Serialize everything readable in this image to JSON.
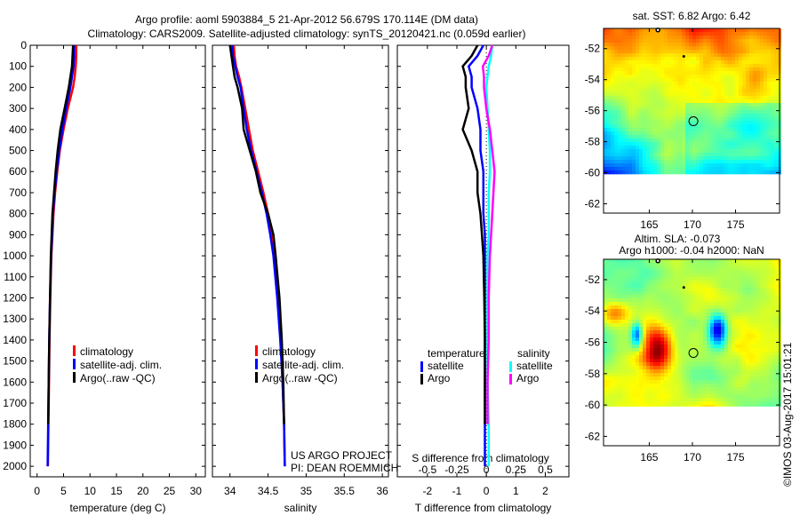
{
  "title": {
    "line1": "Argo profile: aoml 5903884_5 21-Apr-2012 56.679S 170.114E (DM data)",
    "line2": "Climatology: CARS2009. Satellite-adjusted climatology: synTS_20120421.nc (0.059d earlier)"
  },
  "project": {
    "line1": "US ARGO PROJECT",
    "line2": "PI: DEAN ROEMMICH"
  },
  "timestamp": "©IMOS 03-Aug-2017 15:01:21",
  "chart_data": [
    {
      "type": "line",
      "xlabel": "temperature (deg C)",
      "xlim": [
        -1.3,
        31.8
      ],
      "xticks": [
        "0",
        "5",
        "10",
        "15",
        "20",
        "25",
        "30"
      ],
      "ylim": [
        0,
        2050
      ],
      "yticks": [
        "0",
        "100",
        "200",
        "300",
        "400",
        "500",
        "600",
        "700",
        "800",
        "900",
        "1000",
        "1100",
        "1200",
        "1300",
        "1400",
        "1500",
        "1600",
        "1700",
        "1800",
        "1900",
        "2000"
      ],
      "legend": [
        "climatology",
        "satellite-adj. clim.",
        "Argo(..raw -QC)"
      ],
      "depth": [
        0,
        50,
        100,
        150,
        200,
        300,
        400,
        500,
        600,
        700,
        800,
        900,
        1000,
        1200,
        1400,
        1600,
        1800,
        2000
      ],
      "series": [
        {
          "name": "climatology",
          "color": "#ff0000",
          "values": [
            7.4,
            7.4,
            7.3,
            7.1,
            6.8,
            5.8,
            5.0,
            4.3,
            3.8,
            3.4,
            3.1,
            2.9,
            2.7,
            2.5,
            2.35,
            2.25,
            2.15,
            2.05
          ]
        },
        {
          "name": "satellite-adj. clim.",
          "color": "#0000ff",
          "values": [
            7.0,
            7.0,
            6.9,
            6.6,
            6.3,
            5.5,
            4.8,
            4.2,
            3.7,
            3.3,
            3.0,
            2.85,
            2.65,
            2.45,
            2.3,
            2.2,
            2.1,
            2.0
          ]
        },
        {
          "name": "Argo(..raw -QC)",
          "color": "#000000",
          "values": [
            6.8,
            6.7,
            6.6,
            6.3,
            6.0,
            5.2,
            4.4,
            3.9,
            3.5,
            3.2,
            2.9,
            2.75,
            2.6,
            2.45,
            2.3,
            2.2,
            2.1,
            null
          ]
        }
      ]
    },
    {
      "type": "line",
      "xlabel": "salinity",
      "xlim": [
        33.77,
        36.08
      ],
      "xticks": [
        "34",
        "34.5",
        "35",
        "35.5",
        "36"
      ],
      "ylim": [
        0,
        2050
      ],
      "legend": [
        "climatology",
        "satellite-adj. clim.",
        "Argo(..raw -QC)"
      ],
      "depth": [
        0,
        50,
        100,
        150,
        200,
        300,
        400,
        500,
        600,
        700,
        800,
        900,
        1000,
        1200,
        1400,
        1600,
        1800,
        2000
      ],
      "series": [
        {
          "name": "climatology",
          "color": "#ff0000",
          "values": [
            34.05,
            34.06,
            34.08,
            34.12,
            34.15,
            34.2,
            34.25,
            34.3,
            34.37,
            34.44,
            34.5,
            34.55,
            34.58,
            34.63,
            34.67,
            34.69,
            34.71,
            34.72
          ]
        },
        {
          "name": "satellite-adj. clim.",
          "color": "#0000ff",
          "values": [
            34.03,
            34.04,
            34.07,
            34.1,
            34.14,
            34.18,
            34.22,
            34.28,
            34.35,
            34.42,
            34.48,
            34.53,
            34.57,
            34.62,
            34.66,
            34.69,
            34.71,
            34.72
          ]
        },
        {
          "name": "Argo(..raw -QC)",
          "color": "#000000",
          "values": [
            34.0,
            34.02,
            34.04,
            34.06,
            34.1,
            34.16,
            34.18,
            34.26,
            34.34,
            34.4,
            34.5,
            34.57,
            34.6,
            34.65,
            34.68,
            34.7,
            34.71,
            null
          ]
        }
      ]
    },
    {
      "type": "line",
      "xlabel": "T difference from climatology",
      "xlabel2": "S difference from climatology",
      "xlim": [
        -3.02,
        2.8
      ],
      "xticks": [
        "-2",
        "-1",
        "0",
        "1",
        "2"
      ],
      "xticks2": [
        "-0.5",
        "-0.25",
        "0",
        "0.25",
        "0.5"
      ],
      "ylim": [
        0,
        2050
      ],
      "legend_headers": [
        "temperature",
        "salinity"
      ],
      "legend": [
        "satellite",
        "Argo",
        "satellite",
        "Argo"
      ],
      "depth": [
        0,
        50,
        100,
        150,
        200,
        300,
        400,
        500,
        600,
        700,
        800,
        900,
        1000,
        1200,
        1400,
        1600,
        1800,
        2000
      ],
      "series": [
        {
          "name": "T satellite",
          "color": "#0000ff",
          "var": "T",
          "values": [
            -0.1,
            -0.3,
            -0.6,
            -0.5,
            -0.5,
            -0.3,
            -0.2,
            -0.2,
            -0.1,
            -0.1,
            -0.1,
            -0.05,
            -0.05,
            -0.05,
            -0.05,
            -0.05,
            -0.05,
            -0.05
          ]
        },
        {
          "name": "T Argo",
          "color": "#000000",
          "var": "T",
          "values": [
            -0.3,
            -0.5,
            -0.8,
            -0.7,
            -0.7,
            -0.6,
            -0.8,
            -0.5,
            -0.3,
            -0.3,
            -0.2,
            -0.15,
            -0.1,
            -0.07,
            -0.05,
            -0.05,
            -0.05,
            null
          ]
        },
        {
          "name": "S satellite",
          "color": "#00ffff",
          "var": "S",
          "values": [
            0.05,
            0.04,
            0.02,
            0.01,
            0.0,
            0.01,
            0.02,
            0.03,
            0.03,
            0.02,
            0.02,
            0.02,
            0.01,
            0.01,
            0.01,
            0.01,
            0.02,
            0.02
          ]
        },
        {
          "name": "S Argo",
          "color": "#ff00ff",
          "var": "S",
          "values": [
            0.05,
            0.02,
            -0.03,
            -0.02,
            -0.02,
            0.0,
            0.03,
            0.05,
            0.07,
            0.06,
            0.05,
            0.04,
            0.03,
            0.02,
            0.02,
            0.01,
            0.01,
            null
          ]
        }
      ]
    },
    {
      "type": "heatmap",
      "title": "sat. SST: 6.82 Argo: 6.42",
      "xticks": [
        "165",
        "170",
        "175"
      ],
      "yticks": [
        "-52",
        "-54",
        "-56",
        "-58",
        "-60",
        "-62"
      ],
      "argo_position": [
        170.114,
        -56.679
      ]
    },
    {
      "type": "heatmap",
      "title": "Altim. SLA: -0.073",
      "title2": "Argo h1000: -0.04 h2000: NaN",
      "xticks": [
        "165",
        "170",
        "175"
      ],
      "yticks": [
        "-52",
        "-54",
        "-56",
        "-58",
        "-60",
        "-62"
      ],
      "argo_position": [
        170.114,
        -56.679
      ]
    }
  ]
}
